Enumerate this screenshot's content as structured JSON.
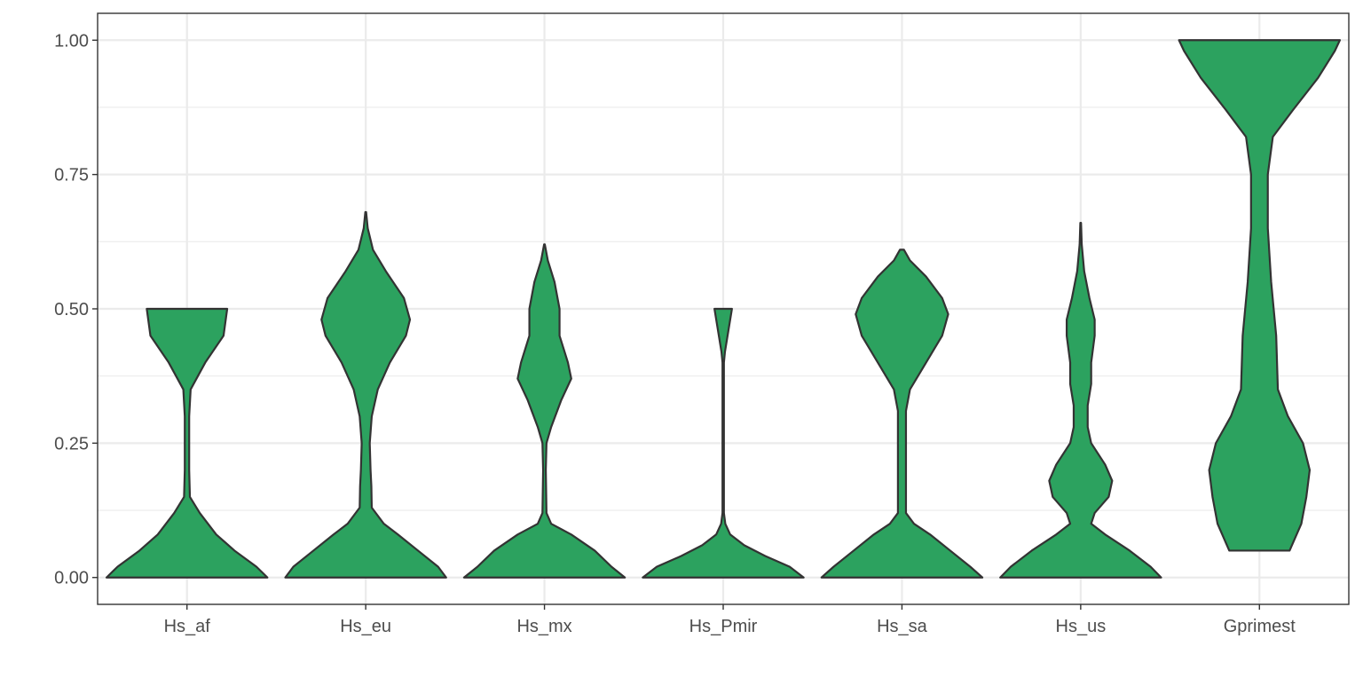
{
  "chart_data": {
    "type": "violin",
    "title": "",
    "xlabel": "",
    "ylabel": "",
    "categories": [
      "Hs_af",
      "Hs_eu",
      "Hs_mx",
      "Hs_Pmir",
      "Hs_sa",
      "Hs_us",
      "Gprimest"
    ],
    "ylim": [
      -0.05,
      1.05
    ],
    "yticks": [
      0.0,
      0.25,
      0.5,
      0.75,
      1.0
    ],
    "ytick_labels": [
      "0.00",
      "0.25",
      "0.50",
      "0.75",
      "1.00"
    ],
    "grid": true,
    "legend": "none",
    "fill_color": "#2ca25f",
    "outline_color": "#333333",
    "violins": [
      {
        "category": "Hs_af",
        "profile": [
          [
            0.0,
            0.22
          ],
          [
            0.02,
            0.19
          ],
          [
            0.05,
            0.13
          ],
          [
            0.08,
            0.08
          ],
          [
            0.12,
            0.035
          ],
          [
            0.15,
            0.008
          ],
          [
            0.2,
            0.006
          ],
          [
            0.3,
            0.006
          ],
          [
            0.35,
            0.01
          ],
          [
            0.4,
            0.05
          ],
          [
            0.45,
            0.1
          ],
          [
            0.5,
            0.11
          ]
        ]
      },
      {
        "category": "Hs_eu",
        "profile": [
          [
            0.0,
            0.2
          ],
          [
            0.02,
            0.18
          ],
          [
            0.05,
            0.13
          ],
          [
            0.08,
            0.08
          ],
          [
            0.1,
            0.045
          ],
          [
            0.13,
            0.015
          ],
          [
            0.17,
            0.014
          ],
          [
            0.2,
            0.012
          ],
          [
            0.25,
            0.01
          ],
          [
            0.3,
            0.015
          ],
          [
            0.35,
            0.03
          ],
          [
            0.4,
            0.06
          ],
          [
            0.45,
            0.1
          ],
          [
            0.48,
            0.11
          ],
          [
            0.52,
            0.095
          ],
          [
            0.57,
            0.05
          ],
          [
            0.61,
            0.018
          ],
          [
            0.65,
            0.005
          ],
          [
            0.68,
            0.001
          ]
        ]
      },
      {
        "category": "Hs_mx",
        "profile": [
          [
            0.0,
            0.24
          ],
          [
            0.02,
            0.2
          ],
          [
            0.05,
            0.15
          ],
          [
            0.08,
            0.08
          ],
          [
            0.1,
            0.02
          ],
          [
            0.12,
            0.006
          ],
          [
            0.2,
            0.004
          ],
          [
            0.25,
            0.006
          ],
          [
            0.28,
            0.02
          ],
          [
            0.33,
            0.05
          ],
          [
            0.37,
            0.08
          ],
          [
            0.4,
            0.07
          ],
          [
            0.45,
            0.045
          ],
          [
            0.5,
            0.045
          ],
          [
            0.55,
            0.03
          ],
          [
            0.59,
            0.01
          ],
          [
            0.62,
            0.001
          ]
        ]
      },
      {
        "category": "Hs_Pmir",
        "profile": [
          [
            0.0,
            0.46
          ],
          [
            0.02,
            0.38
          ],
          [
            0.04,
            0.24
          ],
          [
            0.06,
            0.12
          ],
          [
            0.08,
            0.04
          ],
          [
            0.1,
            0.012
          ],
          [
            0.12,
            0.004
          ],
          [
            0.4,
            0.004
          ],
          [
            0.42,
            0.01
          ],
          [
            0.46,
            0.03
          ],
          [
            0.5,
            0.05
          ]
        ]
      },
      {
        "category": "Hs_sa",
        "profile": [
          [
            0.0,
            0.2
          ],
          [
            0.02,
            0.17
          ],
          [
            0.05,
            0.12
          ],
          [
            0.08,
            0.07
          ],
          [
            0.1,
            0.03
          ],
          [
            0.12,
            0.01
          ],
          [
            0.17,
            0.01
          ],
          [
            0.22,
            0.01
          ],
          [
            0.27,
            0.01
          ],
          [
            0.31,
            0.01
          ],
          [
            0.35,
            0.02
          ],
          [
            0.4,
            0.06
          ],
          [
            0.45,
            0.1
          ],
          [
            0.49,
            0.115
          ],
          [
            0.52,
            0.1
          ],
          [
            0.56,
            0.06
          ],
          [
            0.59,
            0.02
          ],
          [
            0.61,
            0.005
          ]
        ]
      },
      {
        "category": "Hs_us",
        "profile": [
          [
            0.0,
            0.23
          ],
          [
            0.02,
            0.2
          ],
          [
            0.05,
            0.14
          ],
          [
            0.08,
            0.07
          ],
          [
            0.1,
            0.03
          ],
          [
            0.12,
            0.04
          ],
          [
            0.15,
            0.08
          ],
          [
            0.18,
            0.09
          ],
          [
            0.21,
            0.07
          ],
          [
            0.25,
            0.03
          ],
          [
            0.28,
            0.02
          ],
          [
            0.32,
            0.02
          ],
          [
            0.36,
            0.03
          ],
          [
            0.4,
            0.03
          ],
          [
            0.45,
            0.04
          ],
          [
            0.48,
            0.04
          ],
          [
            0.52,
            0.025
          ],
          [
            0.57,
            0.01
          ],
          [
            0.62,
            0.003
          ],
          [
            0.66,
            0.001
          ]
        ]
      },
      {
        "category": "Gprimest",
        "profile": [
          [
            0.05,
            0.018
          ],
          [
            0.1,
            0.025
          ],
          [
            0.15,
            0.028
          ],
          [
            0.2,
            0.03
          ],
          [
            0.25,
            0.026
          ],
          [
            0.3,
            0.017
          ],
          [
            0.35,
            0.011
          ],
          [
            0.45,
            0.01
          ],
          [
            0.55,
            0.007
          ],
          [
            0.65,
            0.005
          ],
          [
            0.75,
            0.005
          ],
          [
            0.82,
            0.008
          ],
          [
            0.87,
            0.02
          ],
          [
            0.93,
            0.035
          ],
          [
            0.98,
            0.045
          ],
          [
            1.0,
            0.048
          ]
        ]
      }
    ]
  }
}
